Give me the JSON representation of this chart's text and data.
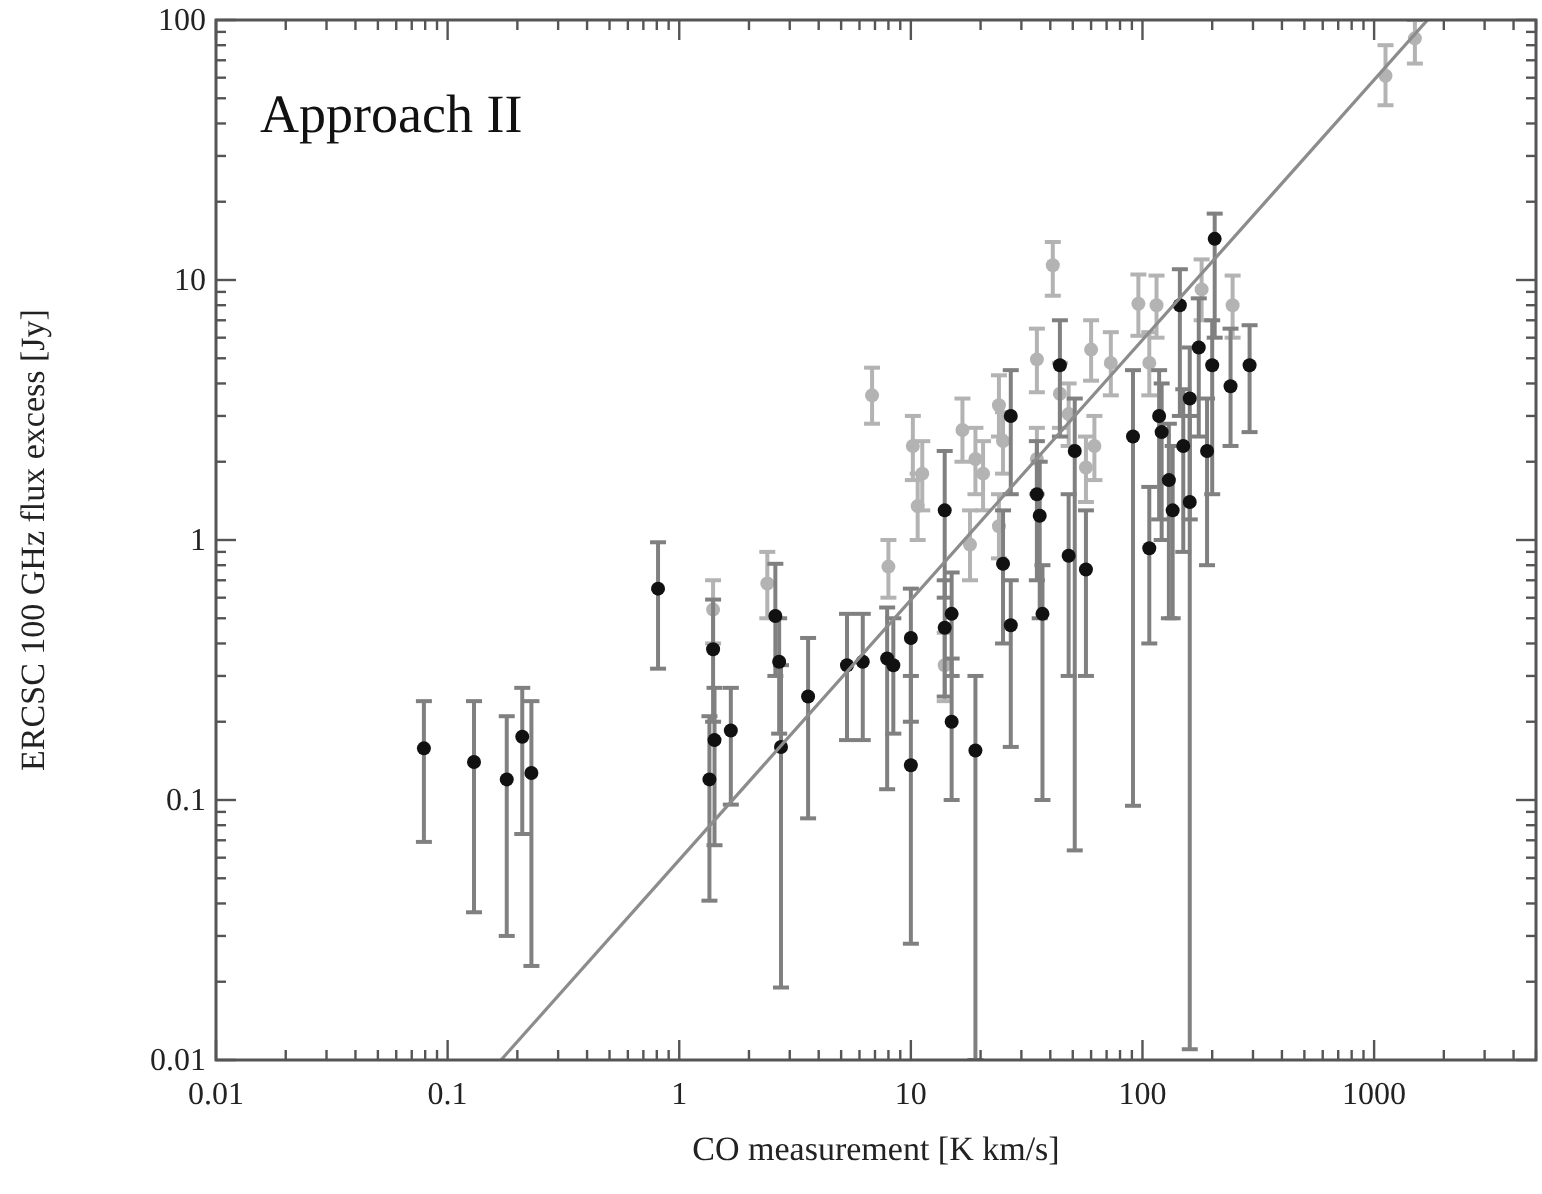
{
  "chart_data": {
    "type": "scatter",
    "xlabel": "CO measurement [K km/s]",
    "ylabel": "ERCSC 100 GHz flux excess [Jy]",
    "annotations": [
      "Approach II"
    ],
    "log": "xy",
    "marker": "circle",
    "xlim": [
      0.01,
      5000
    ],
    "xticks": [
      0.01,
      0.1,
      1,
      10,
      100,
      1000
    ],
    "ylim": [
      0.01,
      100
    ],
    "yticks": [
      0.01,
      0.1,
      1,
      10,
      100
    ],
    "series": [
      {
        "color": "#b3b3b3",
        "x": [
          6.8,
          41,
          1.4,
          2.4,
          8.0,
          1120,
          1500,
          10.2,
          11.2,
          10.7,
          16.7,
          19,
          20.5,
          24,
          25,
          35,
          35,
          44,
          48,
          60,
          62,
          73,
          57,
          96,
          115,
          180,
          245,
          107,
          18,
          24,
          14
        ],
        "values": [
          3.6,
          11.4,
          0.54,
          0.68,
          0.79,
          61,
          85,
          2.3,
          1.8,
          1.35,
          2.65,
          2.05,
          1.8,
          3.3,
          2.4,
          4.95,
          2.05,
          3.65,
          3.05,
          5.4,
          2.3,
          4.8,
          1.9,
          8.1,
          8.0,
          9.2,
          8.0,
          4.8,
          0.96,
          1.13,
          0.33
        ],
        "errors": [
          [
            2.8,
            4.6
          ],
          [
            8.7,
            14
          ],
          [
            0.4,
            0.7
          ],
          [
            0.5,
            0.9
          ],
          [
            0.6,
            1.0
          ],
          [
            47,
            80
          ],
          [
            68,
            100
          ],
          [
            1.7,
            3.0
          ],
          [
            1.3,
            2.4
          ],
          [
            1.0,
            1.8
          ],
          [
            2.0,
            3.5
          ],
          [
            1.5,
            2.7
          ],
          [
            1.3,
            2.4
          ],
          [
            2.5,
            4.3
          ],
          [
            1.8,
            3.1
          ],
          [
            3.7,
            6.5
          ],
          [
            1.5,
            2.7
          ],
          [
            2.7,
            4.8
          ],
          [
            2.3,
            4.0
          ],
          [
            4.1,
            7.0
          ],
          [
            1.7,
            3.0
          ],
          [
            3.6,
            6.3
          ],
          [
            1.4,
            2.5
          ],
          [
            6.1,
            10.5
          ],
          [
            6.0,
            10.4
          ],
          [
            7.0,
            12
          ],
          [
            6.0,
            10.4
          ],
          [
            3.6,
            6.3
          ],
          [
            0.7,
            1.3
          ],
          [
            0.85,
            1.5
          ],
          [
            0.24,
            0.44
          ]
        ]
      },
      {
        "color": "#111111",
        "x": [
          0.079,
          0.13,
          0.18,
          0.21,
          0.23,
          0.81,
          1.4,
          1.35,
          1.42,
          1.67,
          2.6,
          2.7,
          2.75,
          3.6,
          5.3,
          6.2,
          7.9,
          8.4,
          10,
          10,
          15,
          14,
          15,
          19,
          27,
          37,
          14,
          27,
          44,
          35,
          36,
          51,
          48,
          57,
          25,
          91,
          107,
          118,
          121,
          130,
          135,
          150,
          160,
          175,
          160,
          145,
          190,
          200,
          205,
          240,
          290
        ],
        "values": [
          0.158,
          0.14,
          0.12,
          0.175,
          0.127,
          0.65,
          0.38,
          0.12,
          0.17,
          0.185,
          0.51,
          0.34,
          0.16,
          0.25,
          0.33,
          0.34,
          0.35,
          0.33,
          0.136,
          0.42,
          0.52,
          0.46,
          0.2,
          0.155,
          0.47,
          0.52,
          1.3,
          3.0,
          4.7,
          1.5,
          1.24,
          2.2,
          0.87,
          0.77,
          0.81,
          2.5,
          0.93,
          3.0,
          2.6,
          1.7,
          1.3,
          2.3,
          3.5,
          5.5,
          1.4,
          8.0,
          2.2,
          4.7,
          14.4,
          3.9,
          4.7
        ],
        "errors": [
          [
            0.069,
            0.24
          ],
          [
            0.037,
            0.24
          ],
          [
            0.03,
            0.21
          ],
          [
            0.074,
            0.27
          ],
          [
            0.023,
            0.24
          ],
          [
            0.32,
            0.98
          ],
          [
            0.2,
            0.59
          ],
          [
            0.041,
            0.21
          ],
          [
            0.067,
            0.27
          ],
          [
            0.096,
            0.27
          ],
          [
            0.3,
            0.81
          ],
          [
            0.18,
            0.5
          ],
          [
            0.019,
            0.33
          ],
          [
            0.085,
            0.42
          ],
          [
            0.17,
            0.52
          ],
          [
            0.17,
            0.52
          ],
          [
            0.11,
            0.55
          ],
          [
            0.18,
            0.5
          ],
          [
            0.028,
            0.3
          ],
          [
            0.2,
            0.65
          ],
          [
            0.3,
            0.75
          ],
          [
            0.25,
            0.7
          ],
          [
            0.1,
            0.35
          ],
          [
            0.01,
            0.3
          ],
          [
            0.16,
            0.7
          ],
          [
            0.1,
            0.8
          ],
          [
            0.6,
            2.2
          ],
          [
            1.5,
            4.5
          ],
          [
            2.5,
            7.0
          ],
          [
            0.7,
            2.4
          ],
          [
            0.5,
            2.0
          ],
          [
            0.064,
            3.5
          ],
          [
            0.3,
            1.5
          ],
          [
            0.3,
            1.3
          ],
          [
            0.4,
            1.3
          ],
          [
            0.095,
            4.5
          ],
          [
            0.4,
            1.6
          ],
          [
            1.2,
            4.5
          ],
          [
            1.0,
            4.0
          ],
          [
            0.5,
            2.8
          ],
          [
            0.5,
            2.3
          ],
          [
            0.9,
            3.8
          ],
          [
            1.2,
            5.5
          ],
          [
            2.5,
            8.5
          ],
          [
            0.011,
            3.0
          ],
          [
            3.0,
            11
          ],
          [
            0.8,
            3.5
          ],
          [
            1.5,
            7.0
          ],
          [
            6.0,
            18
          ],
          [
            2.3,
            6.5
          ],
          [
            2.6,
            6.7
          ]
        ]
      },
      {
        "type": "line",
        "color": "#8c8c8c",
        "x": [
          0.17,
          1700
        ],
        "values": [
          0.01,
          100
        ],
        "line_style": "solid",
        "marker": "none"
      }
    ]
  }
}
